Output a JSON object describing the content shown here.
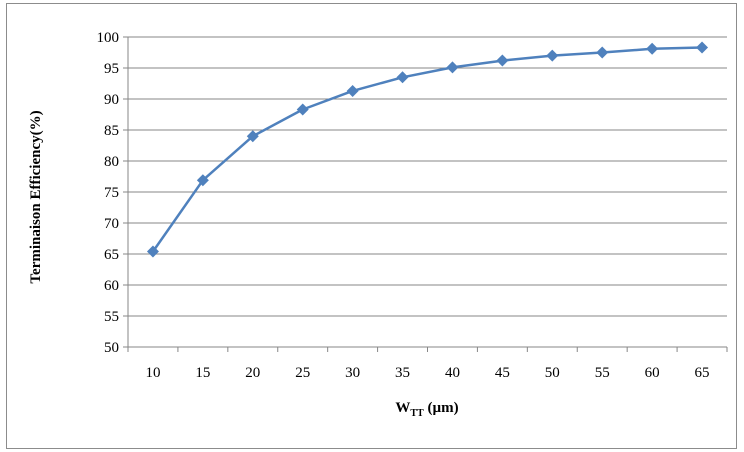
{
  "chart_data": {
    "type": "line",
    "title": "",
    "xlabel": {
      "main": "W",
      "subscript": "TT",
      "unit": " (µm)"
    },
    "ylabel": "Terminaison Efficiency(%)",
    "categories": [
      "10",
      "15",
      "20",
      "25",
      "30",
      "35",
      "40",
      "45",
      "50",
      "55",
      "60",
      "65"
    ],
    "ylim": [
      50,
      100
    ],
    "yticks": [
      "50",
      "55",
      "60",
      "65",
      "70",
      "75",
      "80",
      "85",
      "90",
      "95",
      "100"
    ],
    "grid": "horizontal",
    "legend": "none",
    "series": [
      {
        "values": [
          65.4,
          76.9,
          84.0,
          88.3,
          91.3,
          93.5,
          95.1,
          96.2,
          97.0,
          97.5,
          98.1,
          98.3
        ],
        "color": "#4f81bd",
        "marker": "diamond"
      }
    ]
  }
}
